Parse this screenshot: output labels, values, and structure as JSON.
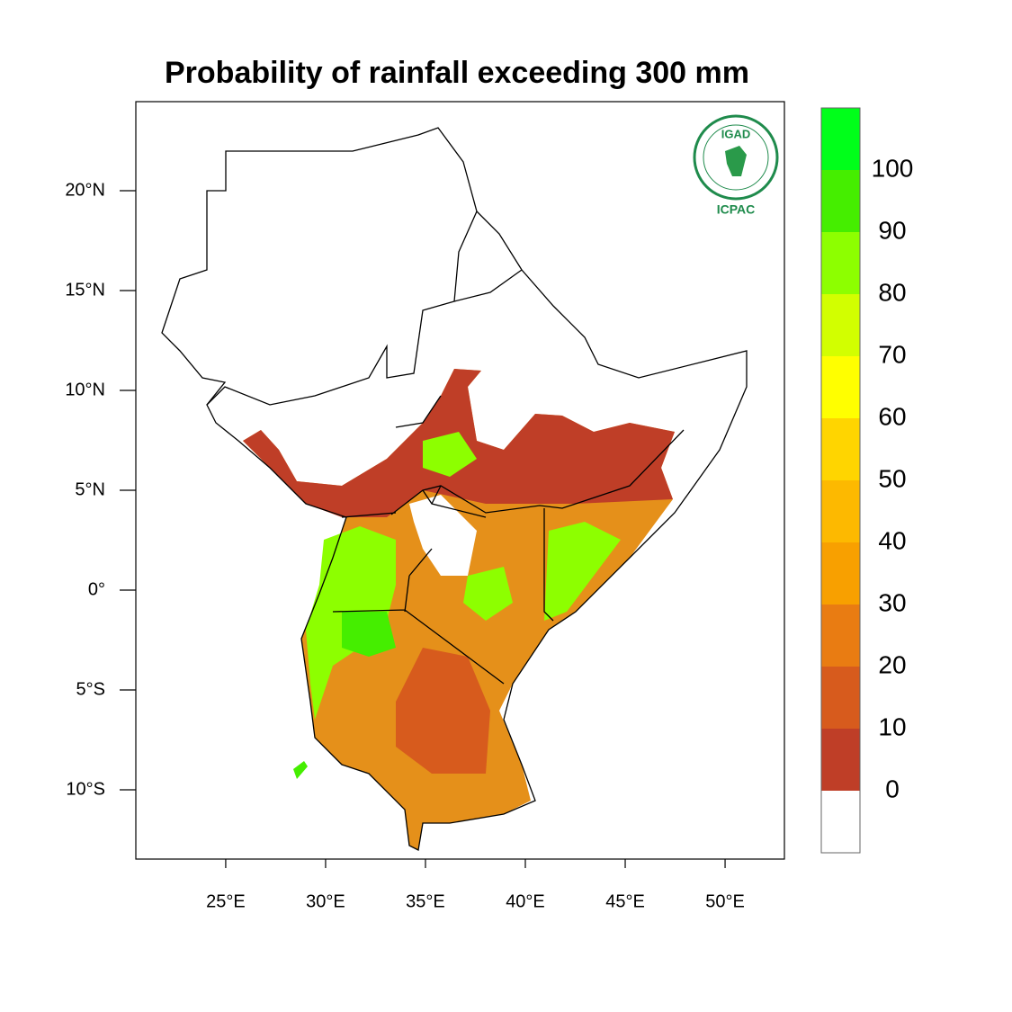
{
  "map": {
    "title": "Probability of rainfall exceeding 300 mm",
    "xlim": [
      20.5,
      52.97
    ],
    "ylim": [
      -13.47,
      24.46
    ],
    "xticks": [
      {
        "value": 25,
        "label": "25°E"
      },
      {
        "value": 30,
        "label": "30°E"
      },
      {
        "value": 35,
        "label": "35°E"
      },
      {
        "value": 40,
        "label": "40°E"
      },
      {
        "value": 45,
        "label": "45°E"
      },
      {
        "value": 50,
        "label": "50°E"
      }
    ],
    "yticks": [
      {
        "value": 20,
        "label": "20°N"
      },
      {
        "value": 15,
        "label": "15°N"
      },
      {
        "value": 10,
        "label": "10°N"
      },
      {
        "value": 5,
        "label": "5°N"
      },
      {
        "value": 0,
        "label": "0°"
      },
      {
        "value": -5,
        "label": "5°S"
      },
      {
        "value": -10,
        "label": "10°S"
      }
    ],
    "colorbar": {
      "levels": [
        0,
        10,
        20,
        30,
        40,
        50,
        60,
        70,
        80,
        90,
        100
      ],
      "colors": [
        "#ffffff",
        "#bf3e27",
        "#d75b1d",
        "#e97c12",
        "#f8a000",
        "#fdb900",
        "#ffd500",
        "#ffff00",
        "#d2ff00",
        "#8dff00",
        "#45ee00",
        "#00ff1a"
      ]
    }
  },
  "logo": {
    "name": "IGAD",
    "subname": "ICPAC"
  }
}
